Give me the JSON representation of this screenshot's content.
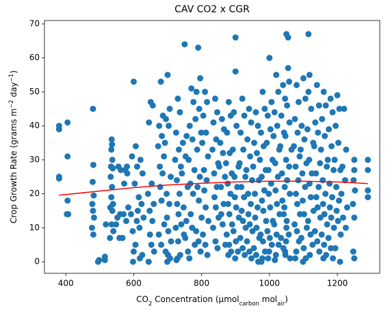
{
  "chart_data": {
    "type": "scatter",
    "title": "CAV CO2 x CGR",
    "x_label": [
      "CO",
      "2",
      " Concentration (µmol",
      "carbon",
      " mol",
      "air",
      ")"
    ],
    "y_label": [
      "Crop Growth Rate (grams m",
      "−2",
      " day",
      "−1",
      ")"
    ],
    "xlim": [
      337,
      1325
    ],
    "ylim": [
      -3.4,
      71
    ],
    "xticks": [
      400,
      600,
      800,
      1000,
      1200
    ],
    "yticks": [
      0,
      10,
      20,
      30,
      40,
      50,
      60,
      70
    ],
    "series": [
      {
        "type": "scatter",
        "color": "#1f77b4",
        "x": [
          380,
          380,
          380,
          380,
          405,
          405,
          405,
          407,
          403,
          480,
          481,
          479,
          482,
          478,
          480,
          483,
          477,
          481,
          495,
          498,
          515,
          515,
          518,
          535,
          536,
          534,
          537,
          533,
          538,
          532,
          536,
          534,
          539,
          531,
          537,
          535,
          540,
          530,
          555,
          560,
          552,
          558,
          548,
          562,
          575,
          581,
          570,
          578,
          567,
          584,
          572,
          580,
          600,
          606,
          595,
          603,
          592,
          609,
          597,
          605,
          600,
          598,
          610,
          620,
          626,
          615,
          623,
          612,
          629,
          617,
          625,
          618,
          650,
          656,
          645,
          653,
          642,
          659,
          647,
          655,
          648,
          652,
          660,
          644,
          680,
          686,
          675,
          683,
          672,
          689,
          677,
          685,
          678,
          682,
          690,
          674,
          681,
          700,
          706,
          695,
          703,
          692,
          709,
          697,
          705,
          698,
          702,
          710,
          694,
          701,
          707,
          699,
          730,
          736,
          725,
          733,
          722,
          739,
          727,
          735,
          728,
          732,
          740,
          724,
          731,
          737,
          729,
          726,
          750,
          756,
          745,
          753,
          742,
          759,
          747,
          755,
          748,
          752,
          760,
          770,
          776,
          765,
          773,
          762,
          779,
          767,
          775,
          768,
          772,
          780,
          764,
          790,
          796,
          785,
          793,
          782,
          799,
          787,
          795,
          788,
          792,
          800,
          784,
          791,
          797,
          810,
          816,
          805,
          813,
          802,
          819,
          807,
          815,
          808,
          812,
          820,
          804,
          811,
          817,
          840,
          846,
          835,
          843,
          832,
          849,
          837,
          845,
          838,
          842,
          850,
          834,
          841,
          847,
          860,
          866,
          855,
          863,
          852,
          869,
          857,
          865,
          858,
          862,
          870,
          880,
          886,
          875,
          883,
          872,
          889,
          877,
          885,
          878,
          882,
          890,
          874,
          881,
          887,
          879,
          900,
          900,
          895,
          903,
          892,
          909,
          897,
          905,
          898,
          902,
          910,
          894,
          901,
          907,
          899,
          920,
          926,
          915,
          923,
          912,
          929,
          917,
          925,
          918,
          922,
          930,
          914,
          921,
          927,
          940,
          946,
          935,
          943,
          932,
          949,
          937,
          945,
          938,
          942,
          950,
          934,
          941,
          947,
          960,
          966,
          955,
          963,
          952,
          969,
          957,
          965,
          958,
          962,
          970,
          954,
          961,
          967,
          980,
          986,
          975,
          983,
          972,
          989,
          977,
          985,
          978,
          982,
          990,
          974,
          981,
          987,
          979,
          976,
          1000,
          1006,
          995,
          1003,
          992,
          1009,
          997,
          1005,
          998,
          1002,
          1010,
          994,
          1001,
          1007,
          999,
          996,
          1020,
          1026,
          1015,
          1023,
          1012,
          1029,
          1017,
          1025,
          1018,
          1022,
          1030,
          1014,
          1021,
          1027,
          1019,
          1016,
          1040,
          1046,
          1035,
          1043,
          1032,
          1049,
          1037,
          1045,
          1038,
          1042,
          1050,
          1034,
          1041,
          1047,
          1050,
          1055,
          1055,
          1058,
          1052,
          1059,
          1047,
          1065,
          1058,
          1052,
          1060,
          1044,
          1051,
          1057,
          1049,
          1046,
          1061,
          1080,
          1086,
          1075,
          1083,
          1072,
          1089,
          1077,
          1085,
          1078,
          1082,
          1090,
          1074,
          1081,
          1087,
          1079,
          1076,
          1100,
          1106,
          1095,
          1103,
          1092,
          1109,
          1097,
          1105,
          1098,
          1102,
          1110,
          1094,
          1101,
          1107,
          1099,
          1115,
          1118,
          1115,
          1123,
          1112,
          1129,
          1117,
          1125,
          1118,
          1122,
          1130,
          1114,
          1121,
          1127,
          1119,
          1140,
          1146,
          1135,
          1143,
          1132,
          1149,
          1137,
          1145,
          1138,
          1142,
          1150,
          1134,
          1141,
          1147,
          1160,
          1166,
          1155,
          1163,
          1152,
          1169,
          1157,
          1165,
          1158,
          1162,
          1170,
          1154,
          1161,
          1167,
          1159,
          1180,
          1186,
          1175,
          1183,
          1172,
          1189,
          1177,
          1185,
          1178,
          1182,
          1190,
          1174,
          1181,
          1187,
          1200,
          1206,
          1195,
          1203,
          1192,
          1209,
          1197,
          1205,
          1198,
          1202,
          1210,
          1194,
          1208,
          1220,
          1226,
          1215,
          1223,
          1212,
          1229,
          1217,
          1225,
          1250,
          1250,
          1248,
          1252,
          1246,
          1250,
          1247,
          1250,
          1290,
          1290,
          1290,
          1290
        ],
        "values": [
          40,
          39,
          25,
          24.5,
          41,
          31,
          18,
          14,
          14,
          45,
          28.5,
          23.5,
          19.5,
          17,
          15,
          13,
          10,
          8,
          0,
          0.5,
          1.5,
          0.5,
          11,
          36,
          34.5,
          33,
          30,
          28,
          27.5,
          25,
          22,
          19,
          17,
          16,
          15,
          11,
          9,
          7,
          28,
          14,
          13,
          7,
          11,
          27,
          27,
          26,
          14,
          12,
          7,
          16,
          23,
          28,
          53,
          34,
          31,
          23,
          14,
          12,
          9,
          5,
          3,
          0,
          28,
          30,
          26,
          19,
          17,
          15,
          13,
          10,
          2,
          1,
          47,
          46,
          41,
          23,
          20,
          17,
          15,
          12,
          8,
          5,
          3,
          0,
          53,
          43,
          40,
          37,
          34,
          31,
          28,
          26,
          22,
          18,
          11,
          8,
          5,
          55,
          45,
          42,
          40,
          35,
          25,
          20,
          17,
          13,
          9,
          6,
          3,
          2,
          1,
          0,
          48,
          44,
          38,
          33,
          30,
          28,
          24,
          20,
          17,
          14,
          11,
          10,
          6,
          2,
          1,
          0.5,
          64,
          37,
          35,
          31,
          26,
          22,
          16,
          12,
          8,
          7,
          3,
          51,
          47,
          40,
          36,
          30,
          27,
          23,
          20,
          14,
          10,
          5,
          1,
          63,
          54,
          50,
          45,
          42,
          38,
          33,
          25,
          22,
          18,
          13,
          9,
          6,
          3,
          50,
          47,
          43,
          38,
          35,
          31,
          27,
          24,
          21,
          16,
          12,
          8,
          5,
          2,
          48,
          44,
          41,
          36,
          33,
          29,
          26,
          22,
          19,
          16,
          13,
          10,
          6,
          4,
          42,
          39,
          35,
          32,
          28,
          25,
          22,
          17,
          14,
          11,
          5,
          47,
          43,
          38,
          32,
          29,
          26,
          23,
          20,
          17,
          14,
          11,
          8,
          5,
          3,
          2,
          66,
          56,
          44,
          40,
          33,
          28,
          25,
          22,
          19,
          16,
          13,
          9,
          6,
          3,
          1,
          48,
          43,
          38,
          33,
          29,
          25,
          22,
          19,
          15,
          12,
          10,
          7,
          4,
          2,
          45,
          41,
          36,
          31,
          27,
          24,
          20,
          17,
          14,
          11,
          9,
          6,
          3,
          1,
          44,
          40,
          35,
          32,
          28,
          24,
          20,
          16,
          13,
          10,
          7,
          4,
          2,
          0,
          50,
          45,
          38,
          34,
          30,
          27,
          25,
          21,
          18,
          15,
          12,
          8,
          6,
          3,
          1,
          0,
          60,
          47,
          43,
          39,
          35,
          30,
          27,
          23,
          20,
          16,
          12,
          9,
          7,
          5,
          3,
          1,
          55,
          50,
          44,
          40,
          37,
          33,
          29,
          25,
          21,
          17,
          14,
          11,
          8,
          5,
          2,
          0.5,
          52,
          48,
          43,
          38,
          34,
          30,
          26,
          22,
          18,
          14,
          10,
          7,
          4,
          2,
          67,
          66,
          57,
          53,
          46,
          41,
          37,
          33,
          28,
          24,
          20,
          16,
          12,
          8,
          6,
          3,
          1,
          52,
          47,
          42,
          38,
          34,
          31,
          28,
          24,
          20,
          17,
          14,
          11,
          9,
          6,
          3,
          1,
          54,
          48,
          40,
          36,
          33,
          29,
          26,
          22,
          18,
          14,
          10,
          7,
          4,
          1,
          0,
          67,
          55,
          50,
          45,
          39,
          35,
          30,
          26,
          23,
          19,
          15,
          12,
          8,
          5,
          2,
          52,
          46,
          41,
          38,
          34,
          29,
          26,
          22,
          19,
          16,
          13,
          9,
          6,
          3,
          50,
          46,
          42,
          37,
          33,
          28,
          24,
          20,
          17,
          14,
          11,
          8,
          5,
          2,
          1,
          48,
          44,
          39,
          34,
          30,
          27,
          23,
          19,
          16,
          13,
          10,
          7,
          4,
          1,
          49,
          45,
          40,
          35,
          30,
          27,
          22,
          18,
          15,
          12,
          8,
          4,
          0,
          45,
          33,
          28,
          24,
          20,
          16,
          13,
          10,
          30,
          27,
          24,
          21,
          17,
          13,
          3,
          1,
          30,
          27,
          21,
          19
        ]
      },
      {
        "type": "line",
        "color": "#ff0000",
        "x": [
          380,
          500,
          600,
          700,
          800,
          900,
          1000,
          1100,
          1200,
          1290
        ],
        "values": [
          19.6,
          20.8,
          21.8,
          22.6,
          23.1,
          23.5,
          23.7,
          23.7,
          23.5,
          23.0
        ]
      }
    ]
  }
}
